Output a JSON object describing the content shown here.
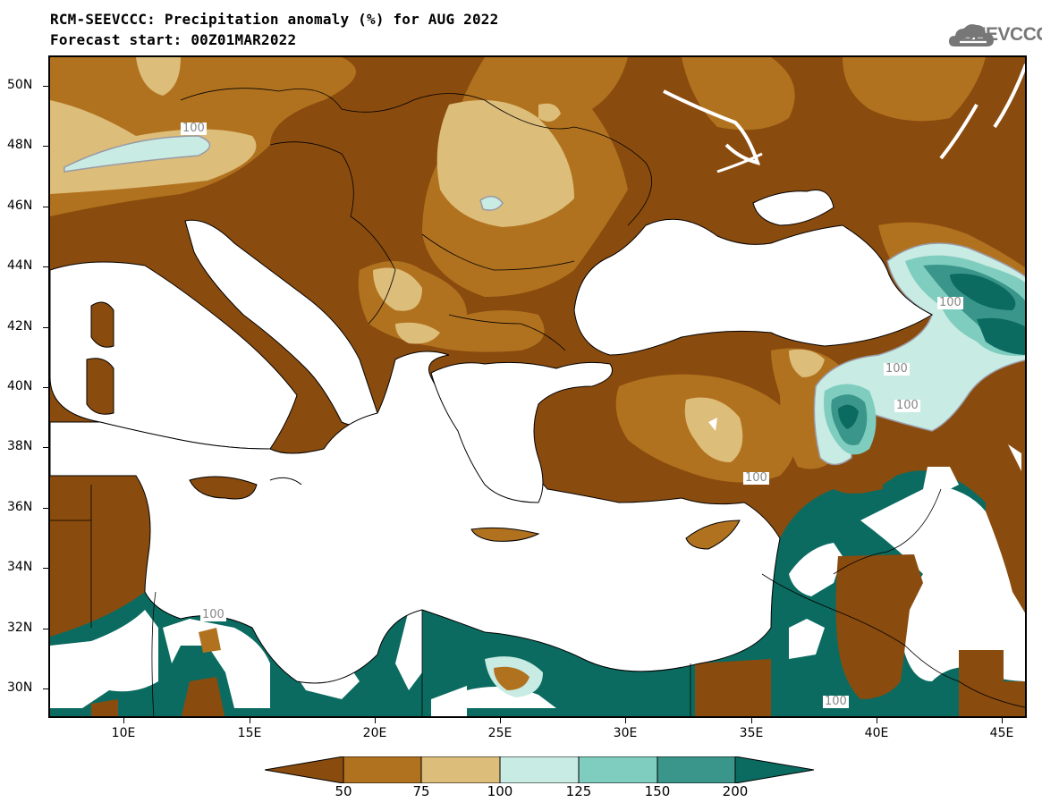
{
  "header": {
    "title": "RCM-SEEVCCC: Precipitation anomaly (%) for AUG 2022",
    "subtitle": "Forecast start: 00Z01MAR2022",
    "logo_text": "SEEVCCC"
  },
  "map": {
    "lat_labels": [
      "50N",
      "48N",
      "46N",
      "44N",
      "42N",
      "40N",
      "38N",
      "36N",
      "34N",
      "32N",
      "30N"
    ],
    "lon_labels": [
      "10E",
      "15E",
      "20E",
      "25E",
      "30E",
      "35E",
      "40E",
      "45E"
    ],
    "contour_labels": [
      "100",
      "100",
      "100",
      "100",
      "100",
      "100",
      "100",
      "100"
    ]
  },
  "legend": {
    "labels": [
      "50",
      "75",
      "100",
      "125",
      "150",
      "200"
    ],
    "colors": [
      "#8a4b0e",
      "#b1721f",
      "#dcbd7a",
      "#c8ebe3",
      "#7fcdbf",
      "#3a968a",
      "#0b6b60"
    ]
  }
}
